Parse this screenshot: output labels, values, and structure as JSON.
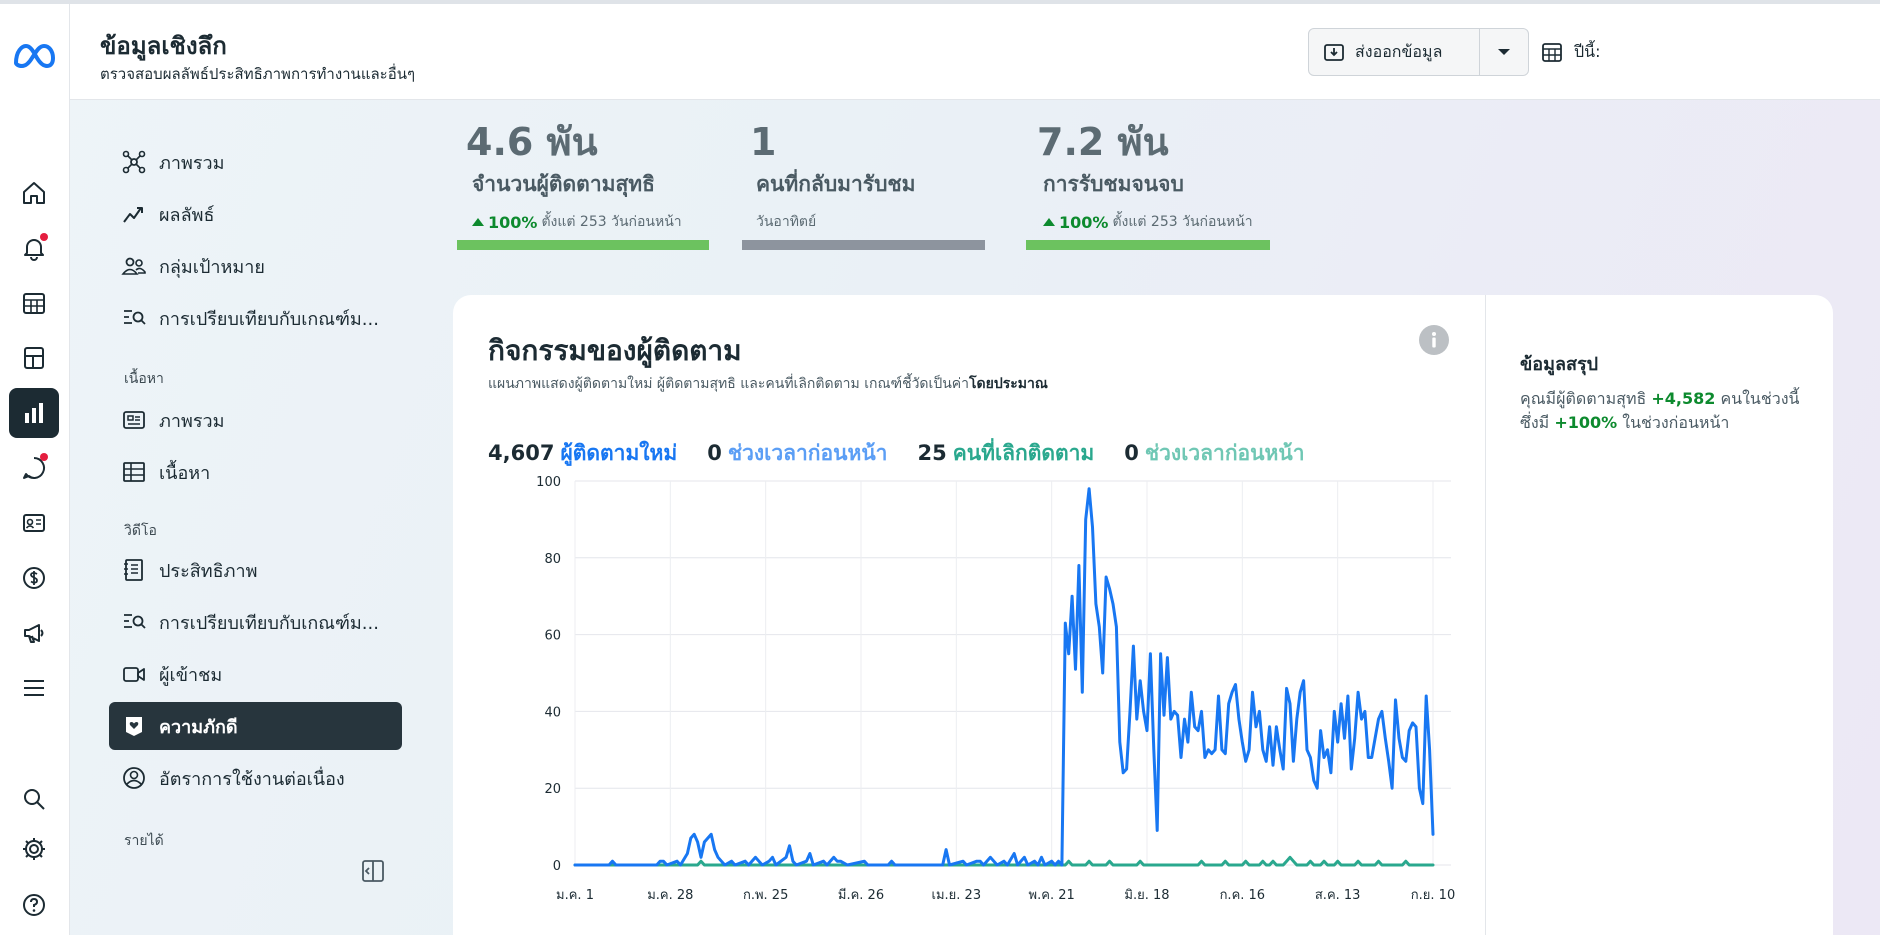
{
  "header": {
    "title": "ข้อมูลเชิงลึก",
    "subtitle": "ตรวจสอบผลลัพธ์ประสิทธิภาพการทำงานและอื่นๆ",
    "export_label": "ส่งออกข้อมูล",
    "date_label": "ปีนี้:"
  },
  "rail": {
    "items": [
      "home-icon",
      "bell-icon",
      "calendar-icon",
      "pages-icon",
      "insights-icon",
      "chat-icon",
      "contact-card-icon",
      "dollar-icon",
      "megaphone-icon",
      "menu-icon",
      "search-icon",
      "gear-icon",
      "help-icon"
    ]
  },
  "sidebar": {
    "items": [
      {
        "label": "ภาพรวม"
      },
      {
        "label": "ผลลัพธ์"
      },
      {
        "label": "กลุ่มเป้าหมาย"
      },
      {
        "label": "การเปรียบเทียบกับเกณฑ์ม..."
      },
      {
        "label": "ภาพรวม"
      },
      {
        "label": "เนื้อหา"
      },
      {
        "label": "ประสิทธิภาพ"
      },
      {
        "label": "การเปรียบเทียบกับเกณฑ์ม..."
      },
      {
        "label": "ผู้เข้าชม"
      },
      {
        "label": "ความภักดี"
      },
      {
        "label": "อัตราการใช้งานต่อเนื่อง"
      }
    ],
    "sections": {
      "content": "เนื้อหา",
      "video": "วิดีโอ",
      "revenue": "รายได้"
    }
  },
  "metrics": [
    {
      "value": "4.6 พัน",
      "label": "จำนวนผู้ติดตามสุทธิ",
      "delta_pct": "100%",
      "delta_text": "ตั้งแต่ 253 วันก่อนหน้า",
      "bar_color": "#6cc25f"
    },
    {
      "value": "1",
      "label": "คนที่กลับมารับชม",
      "sub": "วันอาทิตย์",
      "bar_color": "#8d949e"
    },
    {
      "value": "7.2 พัน",
      "label": "การรับชมจนจบ",
      "delta_pct": "100%",
      "delta_text": "ตั้งแต่ 253 วันก่อนหน้า",
      "bar_color": "#6cc25f"
    }
  ],
  "card": {
    "title": "กิจกรรมของผู้ติดตาม",
    "desc_prefix": "แผนภาพแสดงผู้ติดตามใหม่ ผู้ติดตามสุทธิ และคนที่เลิกติดตาม เกณฑ์ชี้วัดเป็นค่า",
    "desc_bold": "โดยประมาณ",
    "legend": [
      {
        "num": "4,607",
        "label": "ผู้ติดตามใหม่",
        "color": "#1877f2"
      },
      {
        "num": "0",
        "label": "ช่วงเวลาก่อนหน้า",
        "color": "#5b9ef5"
      },
      {
        "num": "25",
        "label": "คนที่เลิกติดตาม",
        "color": "#2aa88e"
      },
      {
        "num": "0",
        "label": "ช่วงเวลาก่อนหน้า",
        "color": "#6fc7b4"
      }
    ],
    "summary": {
      "title": "ข้อมูลสรุป",
      "p1": "คุณมีผู้ติดตามสุทธิ",
      "net": "+4,582",
      "p2": "คนในช่วงนี้ ซึ่งมี",
      "pct": "+100%",
      "p3": "ในช่วงก่อนหน้า"
    }
  },
  "chart_data": {
    "type": "line",
    "title": "",
    "xlabel": "",
    "ylabel": "",
    "ylim": [
      0,
      100
    ],
    "yticks": [
      0,
      20,
      40,
      60,
      80,
      100
    ],
    "xticks": [
      "ม.ค. 1",
      "ม.ค. 28",
      "ก.พ. 25",
      "มี.ค. 26",
      "เม.ย. 23",
      "พ.ค. 21",
      "มิ.ย. 18",
      "ก.ค. 16",
      "ส.ค. 13",
      "ก.ย. 10"
    ],
    "x_days": 253,
    "grid": true,
    "series": [
      {
        "name": "ผู้ติดตามใหม่",
        "color": "#1877f2",
        "points": [
          [
            0,
            0
          ],
          [
            10,
            0
          ],
          [
            11,
            1
          ],
          [
            12,
            0
          ],
          [
            24,
            0
          ],
          [
            25,
            1
          ],
          [
            26,
            1
          ],
          [
            27,
            0
          ],
          [
            30,
            1
          ],
          [
            31,
            0
          ],
          [
            33,
            3
          ],
          [
            34,
            7
          ],
          [
            35,
            8
          ],
          [
            36,
            6
          ],
          [
            37,
            2
          ],
          [
            38,
            6
          ],
          [
            39,
            7
          ],
          [
            40,
            8
          ],
          [
            41,
            4
          ],
          [
            42,
            2
          ],
          [
            43,
            1
          ],
          [
            44,
            0
          ],
          [
            46,
            1
          ],
          [
            47,
            0
          ],
          [
            50,
            1
          ],
          [
            51,
            0
          ],
          [
            53,
            2
          ],
          [
            54,
            1
          ],
          [
            55,
            0
          ],
          [
            57,
            1
          ],
          [
            58,
            2
          ],
          [
            59,
            0
          ],
          [
            62,
            2
          ],
          [
            63,
            5
          ],
          [
            64,
            1
          ],
          [
            65,
            0
          ],
          [
            68,
            1
          ],
          [
            69,
            3
          ],
          [
            70,
            0
          ],
          [
            73,
            1
          ],
          [
            74,
            0
          ],
          [
            76,
            2
          ],
          [
            77,
            1
          ],
          [
            78,
            1
          ],
          [
            80,
            0
          ],
          [
            85,
            1
          ],
          [
            86,
            0
          ],
          [
            92,
            0
          ],
          [
            93,
            1
          ],
          [
            94,
            0
          ],
          [
            108,
            0
          ],
          [
            109,
            4
          ],
          [
            110,
            0
          ],
          [
            114,
            1
          ],
          [
            115,
            0
          ],
          [
            118,
            1
          ],
          [
            119,
            1
          ],
          [
            120,
            0
          ],
          [
            122,
            2
          ],
          [
            123,
            1
          ],
          [
            124,
            0
          ],
          [
            126,
            1
          ],
          [
            127,
            0
          ],
          [
            129,
            3
          ],
          [
            130,
            0
          ],
          [
            132,
            2
          ],
          [
            133,
            0
          ],
          [
            135,
            1
          ],
          [
            136,
            0
          ],
          [
            137,
            2
          ],
          [
            138,
            0
          ],
          [
            140,
            1
          ],
          [
            141,
            0
          ],
          [
            142,
            1
          ],
          [
            143,
            0
          ],
          [
            144,
            63
          ],
          [
            145,
            55
          ],
          [
            146,
            70
          ],
          [
            147,
            51
          ],
          [
            148,
            78
          ],
          [
            149,
            45
          ],
          [
            150,
            90
          ],
          [
            151,
            98
          ],
          [
            152,
            88
          ],
          [
            153,
            68
          ],
          [
            154,
            62
          ],
          [
            155,
            50
          ],
          [
            156,
            75
          ],
          [
            157,
            72
          ],
          [
            158,
            68
          ],
          [
            159,
            62
          ],
          [
            160,
            32
          ],
          [
            161,
            24
          ],
          [
            162,
            25
          ],
          [
            163,
            40
          ],
          [
            164,
            57
          ],
          [
            165,
            38
          ],
          [
            166,
            48
          ],
          [
            167,
            40
          ],
          [
            168,
            35
          ],
          [
            169,
            55
          ],
          [
            170,
            30
          ],
          [
            171,
            9
          ],
          [
            172,
            55
          ],
          [
            173,
            39
          ],
          [
            174,
            54
          ],
          [
            175,
            38
          ],
          [
            176,
            40
          ],
          [
            177,
            39
          ],
          [
            178,
            28
          ],
          [
            179,
            38
          ],
          [
            180,
            32
          ],
          [
            181,
            45
          ],
          [
            182,
            36
          ],
          [
            183,
            35
          ],
          [
            184,
            40
          ],
          [
            185,
            28
          ],
          [
            186,
            30
          ],
          [
            187,
            29
          ],
          [
            188,
            30
          ],
          [
            189,
            44
          ],
          [
            190,
            30
          ],
          [
            191,
            29
          ],
          [
            192,
            42
          ],
          [
            193,
            45
          ],
          [
            194,
            47
          ],
          [
            195,
            38
          ],
          [
            196,
            32
          ],
          [
            197,
            27
          ],
          [
            198,
            30
          ],
          [
            199,
            45
          ],
          [
            200,
            36
          ],
          [
            201,
            40
          ],
          [
            202,
            30
          ],
          [
            203,
            27
          ],
          [
            204,
            36
          ],
          [
            205,
            26
          ],
          [
            206,
            36
          ],
          [
            207,
            30
          ],
          [
            208,
            25
          ],
          [
            209,
            46
          ],
          [
            210,
            42
          ],
          [
            211,
            27
          ],
          [
            212,
            38
          ],
          [
            213,
            45
          ],
          [
            214,
            48
          ],
          [
            215,
            30
          ],
          [
            216,
            28
          ],
          [
            217,
            22
          ],
          [
            218,
            20
          ],
          [
            219,
            35
          ],
          [
            220,
            28
          ],
          [
            221,
            30
          ],
          [
            222,
            24
          ],
          [
            223,
            40
          ],
          [
            224,
            32
          ],
          [
            225,
            42
          ],
          [
            226,
            33
          ],
          [
            227,
            44
          ],
          [
            228,
            25
          ],
          [
            229,
            33
          ],
          [
            230,
            45
          ],
          [
            231,
            38
          ],
          [
            232,
            40
          ],
          [
            233,
            28
          ],
          [
            234,
            28
          ],
          [
            235,
            33
          ],
          [
            236,
            38
          ],
          [
            237,
            40
          ],
          [
            238,
            33
          ],
          [
            239,
            27
          ],
          [
            240,
            20
          ],
          [
            241,
            43
          ],
          [
            242,
            33
          ],
          [
            243,
            28
          ],
          [
            244,
            27
          ],
          [
            245,
            35
          ],
          [
            246,
            37
          ],
          [
            247,
            36
          ],
          [
            248,
            20
          ],
          [
            249,
            16
          ],
          [
            250,
            44
          ],
          [
            251,
            30
          ],
          [
            252,
            8
          ]
        ]
      },
      {
        "name": "คนที่เลิกติดตาม",
        "color": "#2aa88e",
        "points": [
          [
            0,
            0
          ],
          [
            36,
            0
          ],
          [
            37,
            1
          ],
          [
            38,
            0
          ],
          [
            144,
            0
          ],
          [
            145,
            1
          ],
          [
            146,
            0
          ],
          [
            150,
            0
          ],
          [
            151,
            1
          ],
          [
            152,
            0
          ],
          [
            156,
            0
          ],
          [
            157,
            1
          ],
          [
            158,
            0
          ],
          [
            165,
            0
          ],
          [
            166,
            1
          ],
          [
            167,
            0
          ],
          [
            183,
            0
          ],
          [
            184,
            1
          ],
          [
            185,
            0
          ],
          [
            190,
            0
          ],
          [
            191,
            1
          ],
          [
            192,
            0
          ],
          [
            196,
            0
          ],
          [
            197,
            1
          ],
          [
            198,
            0
          ],
          [
            201,
            0
          ],
          [
            202,
            1
          ],
          [
            203,
            0
          ],
          [
            204,
            0
          ],
          [
            205,
            1
          ],
          [
            206,
            0
          ],
          [
            208,
            0
          ],
          [
            209,
            1
          ],
          [
            210,
            2
          ],
          [
            211,
            1
          ],
          [
            212,
            0
          ],
          [
            215,
            0
          ],
          [
            216,
            1
          ],
          [
            217,
            0
          ],
          [
            219,
            0
          ],
          [
            220,
            1
          ],
          [
            221,
            0
          ],
          [
            223,
            0
          ],
          [
            224,
            1
          ],
          [
            225,
            0
          ],
          [
            229,
            0
          ],
          [
            230,
            1
          ],
          [
            231,
            0
          ],
          [
            235,
            0
          ],
          [
            236,
            1
          ],
          [
            237,
            0
          ],
          [
            243,
            0
          ],
          [
            244,
            1
          ],
          [
            245,
            0
          ],
          [
            252,
            0
          ]
        ]
      }
    ]
  }
}
